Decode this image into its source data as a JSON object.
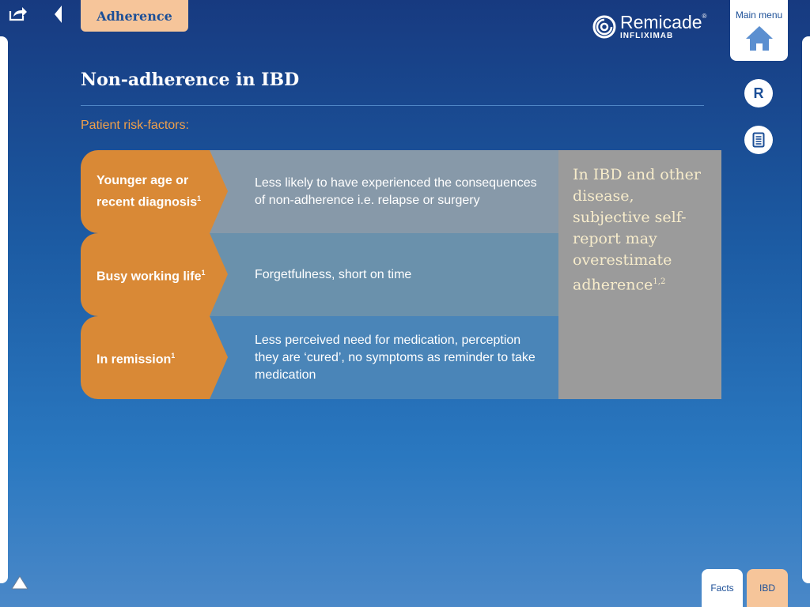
{
  "header": {
    "section_tab": "Adherence",
    "logo": {
      "name": "Remicade",
      "registered": "®",
      "sub": "INFLIXIMAB"
    },
    "main_menu_label": "Main menu",
    "reference_button": "R"
  },
  "main": {
    "title": "Non-adherence in IBD",
    "subtitle": "Patient risk-factors:",
    "rows": [
      {
        "factor": "Younger age or recent diagnosis",
        "ref": "1",
        "description": "Less likely to have experienced the consequences of non-adherence i.e. relapse or surgery"
      },
      {
        "factor": "Busy working life",
        "ref": "1",
        "description": "Forgetfulness, short on time"
      },
      {
        "factor": "In remission",
        "ref": "1",
        "description": "Less perceived need for medication, perception they are ‘cured’, no symptoms as reminder to take medication"
      }
    ],
    "callout": {
      "text": "In IBD and other disease, subjective self-report may overestimate adherence",
      "ref": "1,2"
    }
  },
  "bottom_tabs": {
    "facts": "Facts",
    "ibd": "IBD"
  },
  "icons": {
    "share": "share-icon",
    "back": "back-arrow-icon",
    "home": "home-icon",
    "document": "document-icon",
    "up": "up-arrow-icon",
    "logo": "remicade-logo-icon"
  },
  "colors": {
    "accent_orange": "#d98936",
    "tab_peach": "#f6c59a",
    "brand_blue": "#1c4f97",
    "callout_gray": "#9b9b9b",
    "callout_text": "#f7eccb"
  }
}
